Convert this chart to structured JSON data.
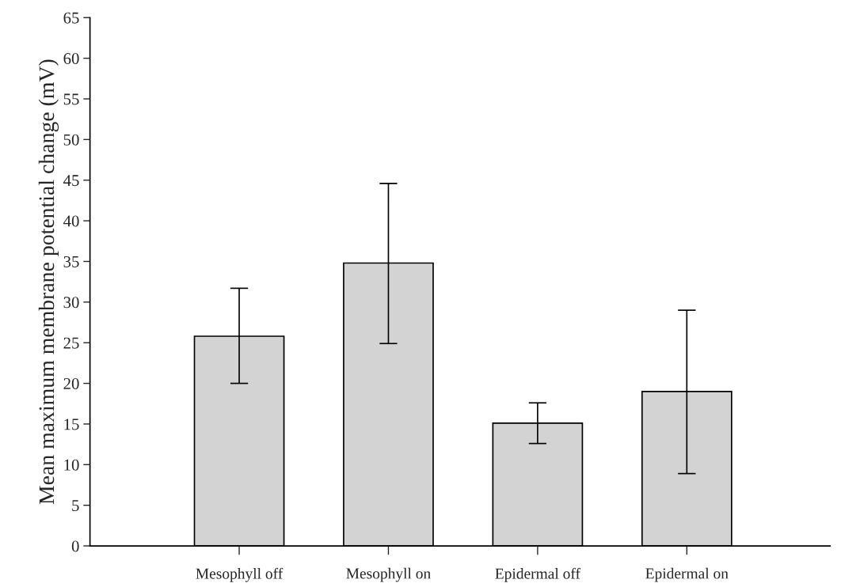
{
  "chart_data": {
    "type": "bar",
    "ylabel": "Mean maximum membrane potential change (mV)",
    "categories": [
      "Mesophyll off",
      "Mesophyll on",
      "Epidermal off",
      "Epidermal on"
    ],
    "values": [
      25.8,
      34.8,
      15.1,
      19.0
    ],
    "errors": [
      [
        20.0,
        31.7
      ],
      [
        24.9,
        44.6
      ],
      [
        12.6,
        17.6
      ],
      [
        8.9,
        29.0
      ]
    ],
    "color": "#d3d3d3",
    "ylim": [
      0,
      65
    ],
    "yticks": [
      0,
      5,
      10,
      15,
      20,
      25,
      30,
      35,
      40,
      45,
      50,
      55,
      60,
      65
    ],
    "grid": false,
    "legend": false
  }
}
